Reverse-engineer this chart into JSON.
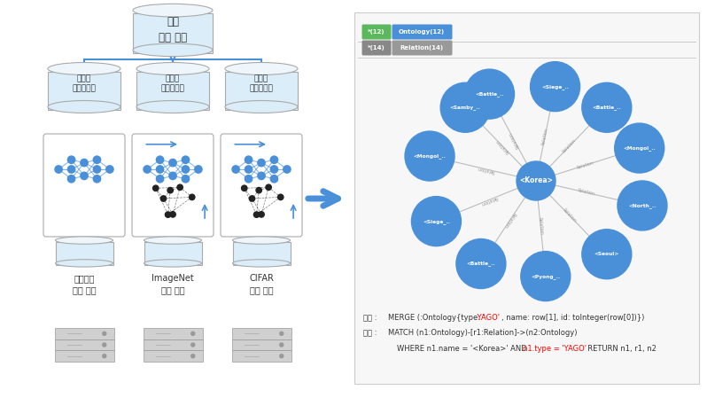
{
  "bg_color": "#ffffff",
  "title_top": "통합",
  "title_bottom": "지식 추론",
  "branch_labels": [
    "다계층\n예측추론기",
    "다계층\n예측추론기",
    "다계층\n예측추론기"
  ],
  "bottom_labels": [
    "온톨로지\n추출 지식",
    "ImageNet\n추출 지식",
    "CIFAR\n추출 지식"
  ],
  "arrow_color": "#4a90d9",
  "node_color": "#4a90d9",
  "node_center_label": "<Korea>",
  "outer_labels": [
    "<Battle_..",
    "<Siege_..",
    "<Battle_..",
    "<Mongol_..",
    "<North_..",
    "<Seoul>",
    "<Pyong_..",
    "<Battle_..",
    "<Siege_..",
    "<Mongol_..",
    "<Samby_.."
  ],
  "outer_angles": [
    115,
    80,
    50,
    20,
    -15,
    -50,
    -85,
    -120,
    -155,
    -195,
    -230
  ],
  "relation_label": "Relation",
  "legend_badge1_color": "#5cb85c",
  "legend_badge1_text": "*(12)",
  "legend_box1_color": "#4a90d9",
  "legend_box1_text": "Ontology(12)",
  "legend_badge2_color": "#888888",
  "legend_badge2_text": "*(14)",
  "legend_box2_color": "#999999",
  "legend_box2_text": "Relation(14)",
  "panel_bg": "#f7f7f7",
  "panel_border": "#cccccc",
  "code1_prefix": "구축 : ",
  "code1_black": "MERGE (:Ontology{type: '",
  "code1_red": " YAGO'",
  "code1_black2": ", name: row[1], id: toInteger(row[0])})",
  "code2_prefix": "검색 : ",
  "code2_black": "MATCH (n1:Ontology)-[r1:Relation]->(n2:Ontology)",
  "code3_black": "WHERE n1.name = '<Korea>' AND ",
  "code3_red": "n1.type = 'YAGO'",
  "code3_black2": "  RETURN n1, r1, n2"
}
